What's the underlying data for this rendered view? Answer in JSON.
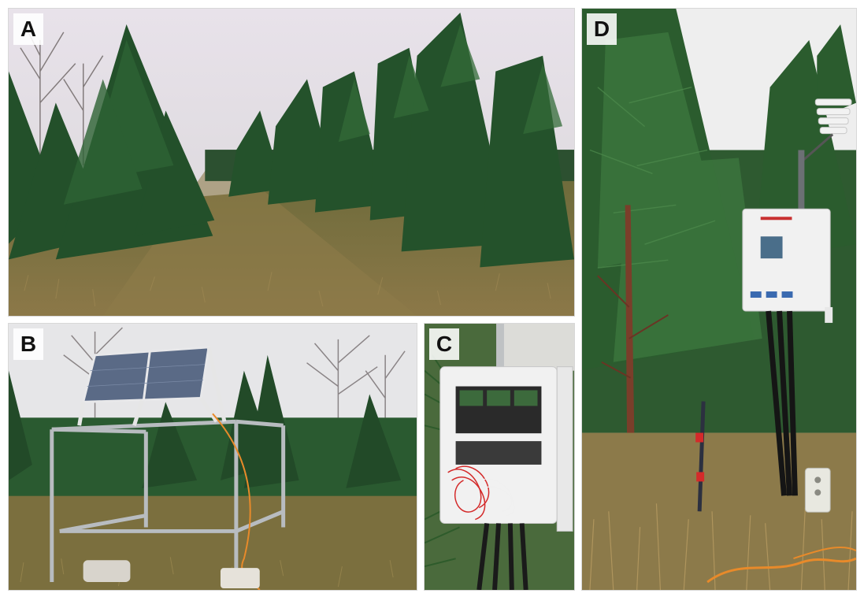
{
  "panels": [
    {
      "id": "A",
      "label": "A"
    },
    {
      "id": "B",
      "label": "B"
    },
    {
      "id": "C",
      "label": "C"
    },
    {
      "id": "D",
      "label": "D"
    }
  ],
  "colors": {
    "sky": "#e6e2e6",
    "pine_dark": "#1f4a25",
    "pine_mid": "#2f6a34",
    "grass_dry": "#8a7a44",
    "grass_green": "#5e6a34",
    "trunk": "#7a3e2a",
    "enclosure": "#f1f1f1",
    "solar_panel": "#5a6a86",
    "frame_metal": "#b8bcc0",
    "cable_red": "#d42a2a",
    "cable_orange": "#e88a2a"
  }
}
